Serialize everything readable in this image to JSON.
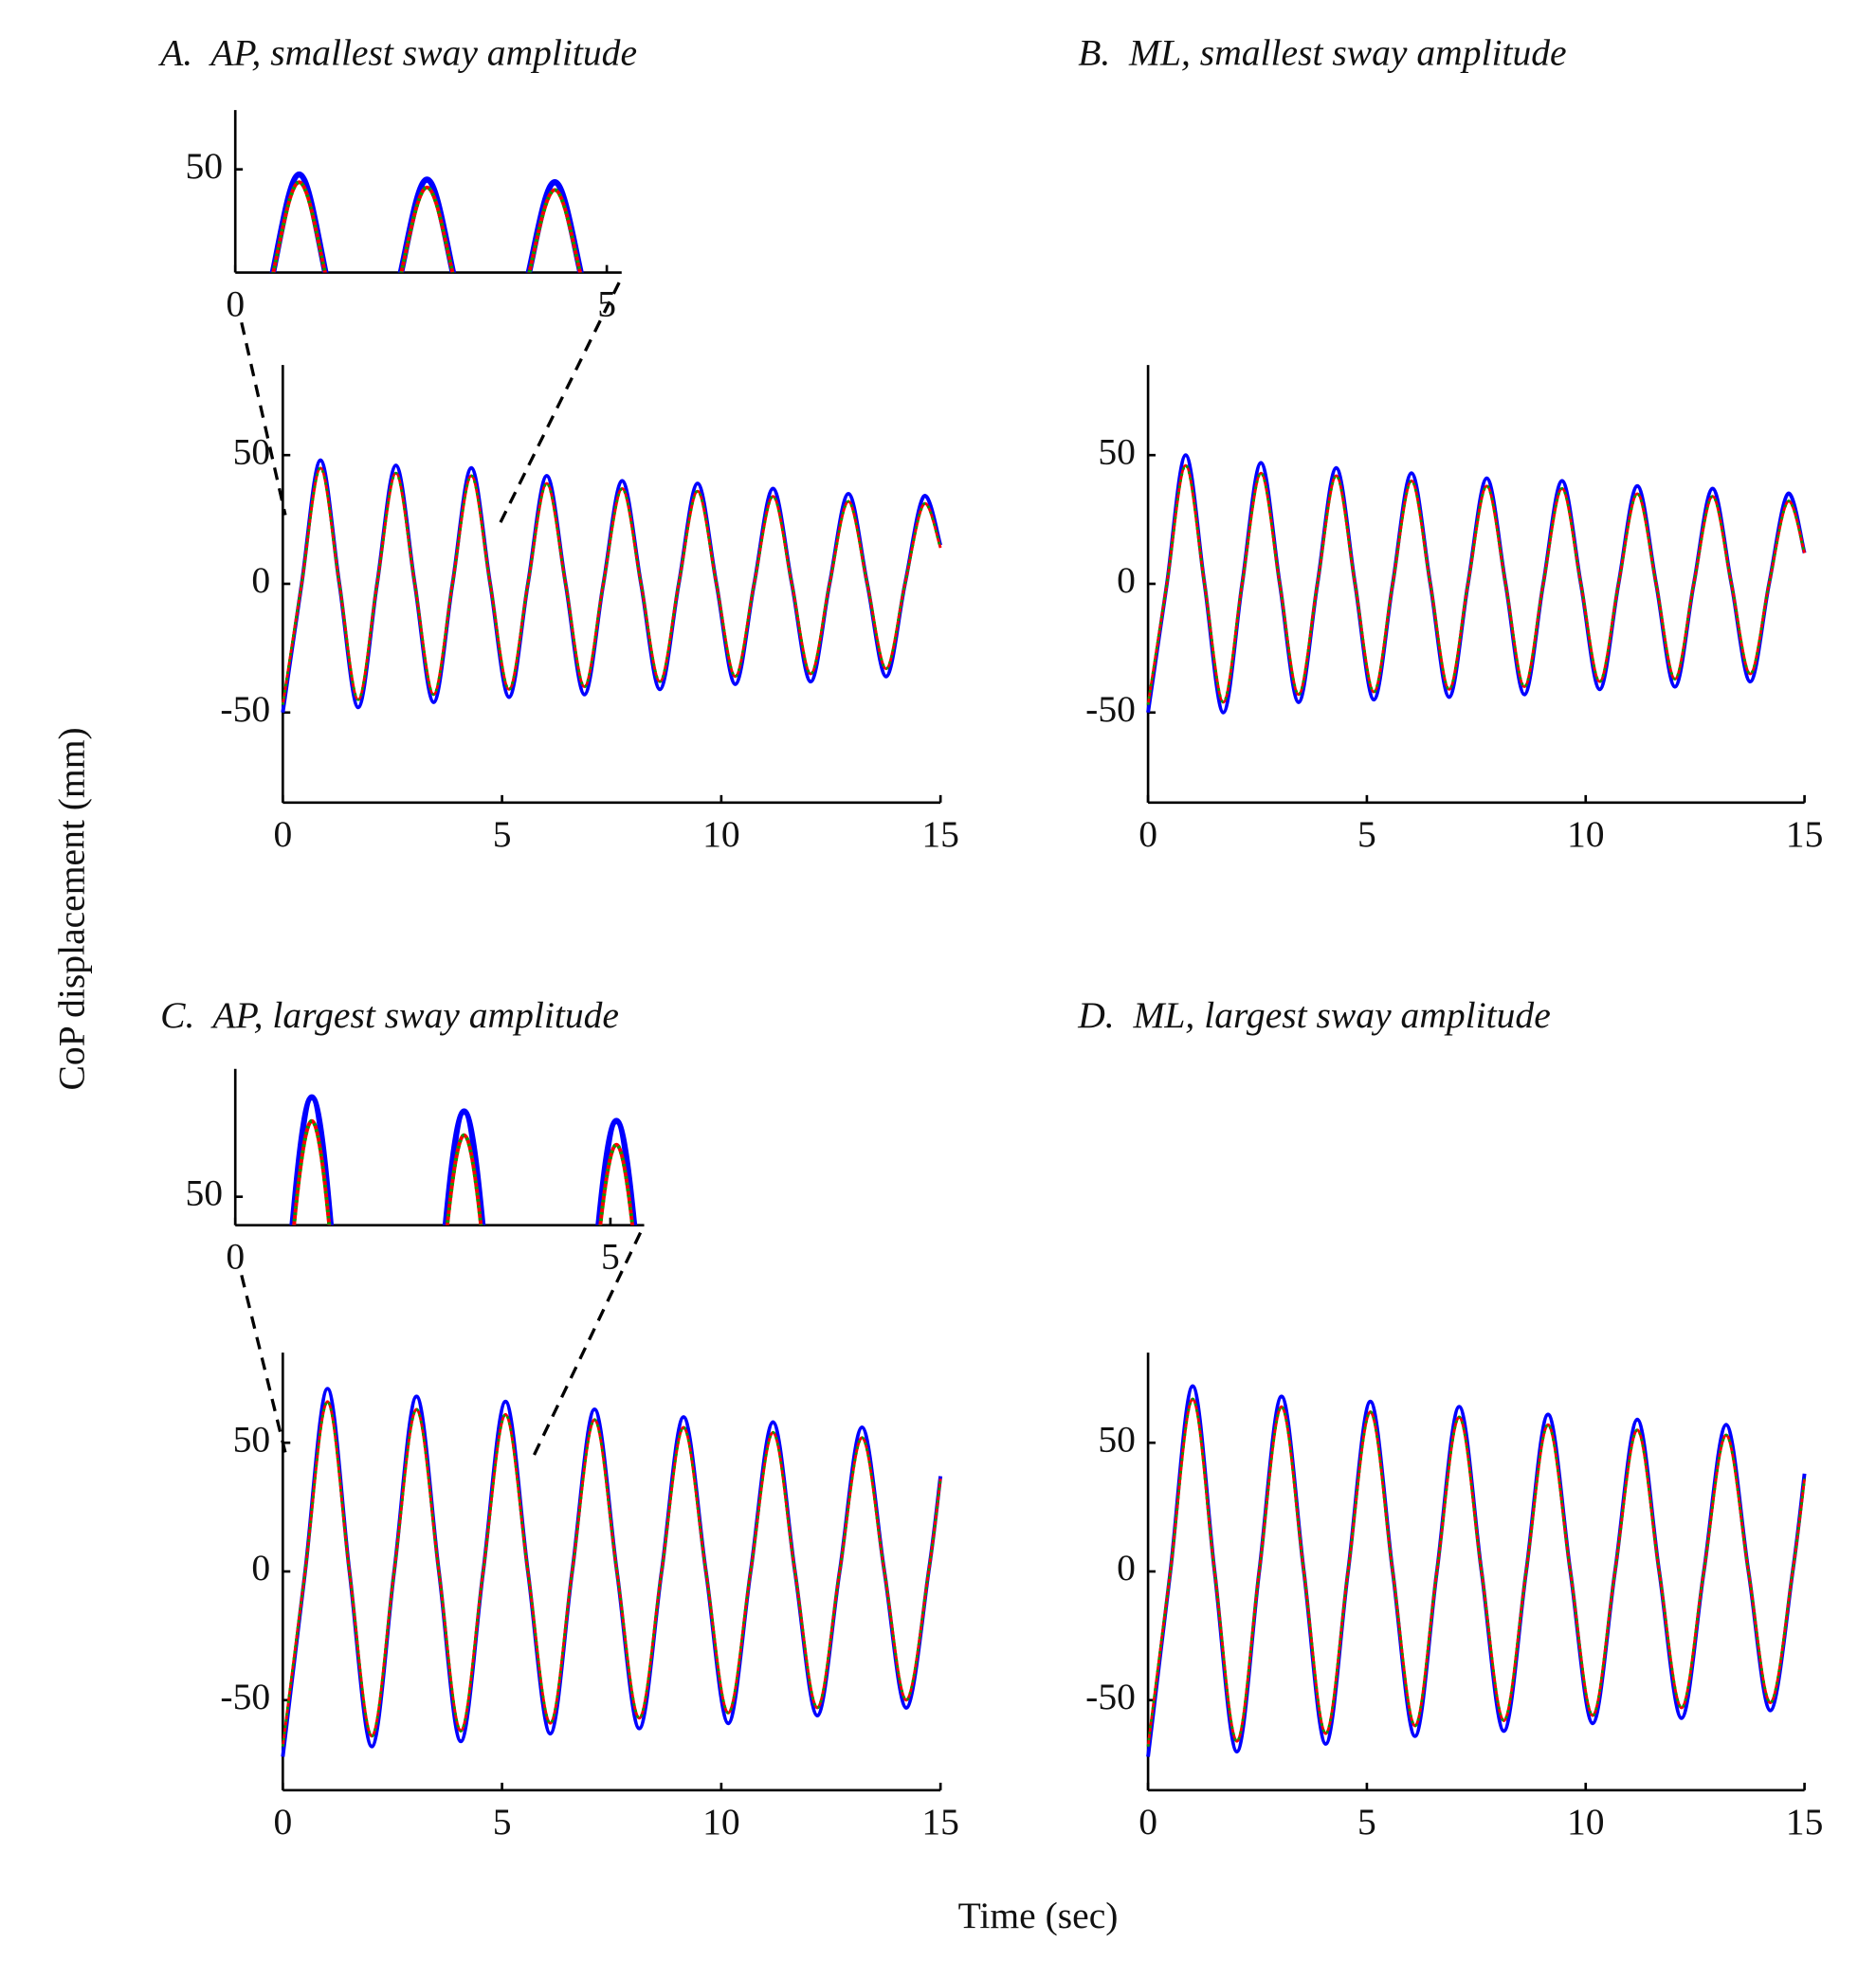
{
  "y_label": "CoP displacement (mm)",
  "x_label": "Time (sec)",
  "chart_data": [
    {
      "type": "line",
      "title": "A.  AP, smallest sway amplitude",
      "x": [
        0,
        0.43,
        0.86,
        1.29,
        1.72,
        2.15,
        2.58,
        3.01,
        3.44,
        3.87,
        4.3,
        4.73,
        5.16,
        5.59,
        6.02,
        6.45,
        6.88,
        7.31,
        7.74,
        8.17,
        8.6,
        9.03,
        9.46,
        9.89,
        10.32,
        10.75,
        11.18,
        11.61,
        12.04,
        12.47,
        12.9,
        13.33,
        13.76,
        14.19,
        14.62,
        15
      ],
      "series": [
        {
          "color": "#0000ff",
          "line_style": "solid",
          "values": [
            -50,
            0,
            48,
            0,
            -48,
            0,
            46,
            0,
            -46,
            0,
            45,
            0,
            -44,
            0,
            42,
            0,
            -43,
            0,
            40,
            0,
            -41,
            0,
            39,
            0,
            -39,
            0,
            37,
            0,
            -38,
            0,
            35,
            0,
            -36,
            0,
            34,
            15
          ]
        },
        {
          "color": "#ff0000",
          "line_style": "solid",
          "values": [
            -47,
            0,
            45,
            0,
            -45,
            0,
            43,
            0,
            -43,
            0,
            42,
            0,
            -41,
            0,
            39,
            0,
            -40,
            0,
            37,
            0,
            -38,
            0,
            36,
            0,
            -36,
            0,
            34,
            0,
            -35,
            0,
            32,
            0,
            -33,
            0,
            31,
            14
          ]
        },
        {
          "color": "#00a000",
          "line_style": "dotted",
          "values": [
            -47,
            0,
            45,
            0,
            -45,
            0,
            43,
            0,
            -43,
            0,
            42,
            0,
            -41,
            0,
            39,
            0,
            -40,
            0,
            37,
            0,
            -38,
            0,
            36,
            0,
            -36,
            0,
            34,
            0,
            -35,
            0,
            32,
            0,
            -33,
            0,
            31,
            14
          ]
        }
      ],
      "xlim": [
        0,
        15
      ],
      "ylim": [
        -85,
        85
      ],
      "xticks": [
        0,
        5,
        10,
        15
      ],
      "yticks": [
        -50,
        0,
        50
      ],
      "inset": {
        "xlim": [
          0,
          5.2
        ],
        "ylim": [
          10,
          73
        ],
        "xticks": [
          0,
          5
        ],
        "yticks": [
          50
        ]
      }
    },
    {
      "type": "line",
      "title": "B.  ML, smallest sway amplitude",
      "x": [
        0,
        0.43,
        0.86,
        1.29,
        1.72,
        2.15,
        2.58,
        3.01,
        3.44,
        3.87,
        4.3,
        4.73,
        5.16,
        5.59,
        6.02,
        6.45,
        6.88,
        7.31,
        7.74,
        8.17,
        8.6,
        9.03,
        9.46,
        9.89,
        10.32,
        10.75,
        11.18,
        11.61,
        12.04,
        12.47,
        12.9,
        13.33,
        13.76,
        14.19,
        14.62,
        15
      ],
      "series": [
        {
          "color": "#0000ff",
          "line_style": "solid",
          "values": [
            -50,
            0,
            50,
            0,
            -50,
            0,
            47,
            0,
            -46,
            0,
            45,
            0,
            -45,
            0,
            43,
            0,
            -44,
            0,
            41,
            0,
            -43,
            0,
            40,
            0,
            -41,
            0,
            38,
            0,
            -40,
            0,
            37,
            0,
            -38,
            0,
            35,
            12
          ]
        },
        {
          "color": "#ff0000",
          "line_style": "solid",
          "values": [
            -47,
            0,
            46,
            0,
            -46,
            0,
            43,
            0,
            -43,
            0,
            42,
            0,
            -42,
            0,
            40,
            0,
            -41,
            0,
            38,
            0,
            -40,
            0,
            37,
            0,
            -38,
            0,
            35,
            0,
            -37,
            0,
            34,
            0,
            -35,
            0,
            32,
            12
          ]
        },
        {
          "color": "#00a000",
          "line_style": "dotted",
          "values": [
            -47,
            0,
            46,
            0,
            -46,
            0,
            43,
            0,
            -43,
            0,
            42,
            0,
            -42,
            0,
            40,
            0,
            -41,
            0,
            38,
            0,
            -40,
            0,
            37,
            0,
            -38,
            0,
            35,
            0,
            -37,
            0,
            34,
            0,
            -35,
            0,
            32,
            12
          ]
        }
      ],
      "xlim": [
        0,
        15
      ],
      "ylim": [
        -85,
        85
      ],
      "xticks": [
        0,
        5,
        10,
        15
      ],
      "yticks": [
        -50,
        0,
        50
      ]
    },
    {
      "type": "line",
      "title": "C.  AP, largest sway amplitude",
      "x": [
        0,
        0.51,
        1.02,
        1.52,
        2.03,
        2.54,
        3.05,
        3.56,
        4.06,
        4.57,
        5.08,
        5.59,
        6.1,
        6.6,
        7.11,
        7.62,
        8.13,
        8.64,
        9.14,
        9.65,
        10.16,
        10.67,
        11.18,
        11.68,
        12.19,
        12.7,
        13.21,
        13.72,
        14.22,
        14.73,
        15
      ],
      "series": [
        {
          "color": "#0000ff",
          "line_style": "solid",
          "values": [
            -72,
            0,
            71,
            0,
            -68,
            0,
            68,
            0,
            -66,
            0,
            66,
            0,
            -63,
            0,
            63,
            0,
            -61,
            0,
            60,
            0,
            -59,
            0,
            58,
            0,
            -56,
            0,
            56,
            0,
            -53,
            0,
            37
          ]
        },
        {
          "color": "#ff0000",
          "line_style": "solid",
          "values": [
            -68,
            0,
            66,
            0,
            -64,
            0,
            63,
            0,
            -62,
            0,
            61,
            0,
            -59,
            0,
            59,
            0,
            -57,
            0,
            56,
            0,
            -55,
            0,
            54,
            0,
            -53,
            0,
            52,
            0,
            -50,
            0,
            36
          ]
        },
        {
          "color": "#00a000",
          "line_style": "dotted",
          "values": [
            -68,
            0,
            66,
            0,
            -64,
            0,
            63,
            0,
            -62,
            0,
            61,
            0,
            -59,
            0,
            59,
            0,
            -57,
            0,
            56,
            0,
            -55,
            0,
            54,
            0,
            -53,
            0,
            52,
            0,
            -50,
            0,
            36
          ]
        }
      ],
      "xlim": [
        0,
        15
      ],
      "ylim": [
        -85,
        85
      ],
      "xticks": [
        0,
        5,
        10,
        15
      ],
      "yticks": [
        -50,
        0,
        50
      ],
      "inset": {
        "xlim": [
          0,
          5.45
        ],
        "ylim": [
          44,
          77
        ],
        "xticks": [
          0,
          5
        ],
        "yticks": [
          50
        ]
      }
    },
    {
      "type": "line",
      "title": "D.  ML, largest sway amplitude",
      "x": [
        0,
        0.51,
        1.02,
        1.52,
        2.03,
        2.54,
        3.05,
        3.56,
        4.06,
        4.57,
        5.08,
        5.59,
        6.1,
        6.6,
        7.11,
        7.62,
        8.13,
        8.64,
        9.14,
        9.65,
        10.16,
        10.67,
        11.18,
        11.68,
        12.19,
        12.7,
        13.21,
        13.72,
        14.22,
        14.73,
        15
      ],
      "series": [
        {
          "color": "#0000ff",
          "line_style": "solid",
          "values": [
            -72,
            0,
            72,
            0,
            -70,
            0,
            68,
            0,
            -67,
            0,
            66,
            0,
            -64,
            0,
            64,
            0,
            -62,
            0,
            61,
            0,
            -59,
            0,
            59,
            0,
            -57,
            0,
            57,
            0,
            -54,
            0,
            38
          ]
        },
        {
          "color": "#ff0000",
          "line_style": "solid",
          "values": [
            -68,
            0,
            67,
            0,
            -66,
            0,
            64,
            0,
            -63,
            0,
            62,
            0,
            -60,
            0,
            60,
            0,
            -58,
            0,
            57,
            0,
            -56,
            0,
            55,
            0,
            -53,
            0,
            53,
            0,
            -51,
            0,
            36
          ]
        },
        {
          "color": "#00a000",
          "line_style": "dotted",
          "values": [
            -68,
            0,
            67,
            0,
            -66,
            0,
            64,
            0,
            -63,
            0,
            62,
            0,
            -60,
            0,
            60,
            0,
            -58,
            0,
            57,
            0,
            -56,
            0,
            55,
            0,
            -53,
            0,
            53,
            0,
            -51,
            0,
            36
          ]
        }
      ],
      "xlim": [
        0,
        15
      ],
      "ylim": [
        -85,
        85
      ],
      "xticks": [
        0,
        5,
        10,
        15
      ],
      "yticks": [
        -50,
        0,
        50
      ]
    }
  ]
}
